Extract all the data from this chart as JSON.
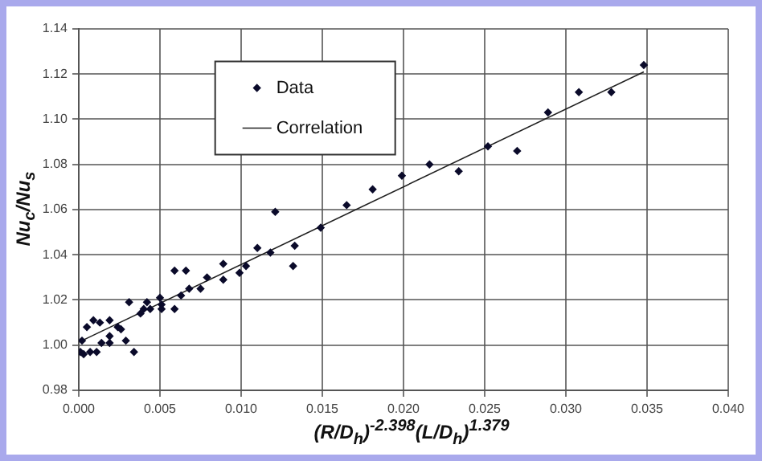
{
  "chart_data": {
    "type": "scatter",
    "xlabel": "(R/D$_{h}$)$^{-2.398}$(L/D$_{h}$)$^{1.379}$",
    "ylabel": "Nu$_{c}$/Nu$_{s}$",
    "xlim": [
      0,
      0.04
    ],
    "ylim": [
      0.98,
      1.14
    ],
    "xticks": [
      {
        "value": 0,
        "label": "0.000"
      },
      {
        "value": 0.005,
        "label": "0.005"
      },
      {
        "value": 0.01,
        "label": "0.010"
      },
      {
        "value": 0.015,
        "label": "0.015"
      },
      {
        "value": 0.02,
        "label": "0.020"
      },
      {
        "value": 0.025,
        "label": "0.025"
      },
      {
        "value": 0.03,
        "label": "0.030"
      },
      {
        "value": 0.035,
        "label": "0.035"
      },
      {
        "value": 0.04,
        "label": "0.040"
      }
    ],
    "yticks": [
      {
        "value": 0.98,
        "label": "0.98"
      },
      {
        "value": 1,
        "label": "1.00"
      },
      {
        "value": 1.02,
        "label": "1.02"
      },
      {
        "value": 1.04,
        "label": "1.04"
      },
      {
        "value": 1.06,
        "label": "1.06"
      },
      {
        "value": 1.08,
        "label": "1.08"
      },
      {
        "value": 1.1,
        "label": "1.10"
      },
      {
        "value": 1.12,
        "label": "1.12"
      },
      {
        "value": 1.14,
        "label": "1.14"
      }
    ],
    "grid": true,
    "legend": "top left",
    "series": [
      {
        "name": "Data",
        "type": "scatter",
        "marker": "diamond",
        "color": "#0a0a2a",
        "x": [
          0.0001,
          0.0002,
          0.0003,
          0.0005,
          0.0007,
          0.0009,
          0.0011,
          0.0013,
          0.0014,
          0.0019,
          0.0019,
          0.0019,
          0.0024,
          0.0026,
          0.0029,
          0.0031,
          0.0034,
          0.0038,
          0.004,
          0.0042,
          0.0044,
          0.005,
          0.0051,
          0.0051,
          0.0059,
          0.0059,
          0.0063,
          0.0066,
          0.0068,
          0.0075,
          0.0079,
          0.0089,
          0.0089,
          0.0099,
          0.0103,
          0.011,
          0.0118,
          0.0121,
          0.0132,
          0.0133,
          0.0149,
          0.0165,
          0.0181,
          0.0199,
          0.0216,
          0.0234,
          0.0252,
          0.027,
          0.0289,
          0.0308,
          0.0328,
          0.0348
        ],
        "values": [
          0.997,
          1.002,
          0.996,
          1.008,
          0.997,
          1.011,
          0.997,
          1.01,
          1.001,
          1.011,
          1.004,
          1.001,
          1.008,
          1.007,
          1.002,
          1.019,
          0.997,
          1.014,
          1.016,
          1.019,
          1.016,
          1.021,
          1.018,
          1.016,
          1.033,
          1.016,
          1.022,
          1.033,
          1.025,
          1.025,
          1.03,
          1.036,
          1.029,
          1.032,
          1.035,
          1.043,
          1.041,
          1.059,
          1.035,
          1.044,
          1.052,
          1.062,
          1.069,
          1.075,
          1.08,
          1.077,
          1.088,
          1.086,
          1.103,
          1.112,
          1.112,
          1.124
        ]
      },
      {
        "name": "Correlation",
        "type": "line",
        "marker": "none",
        "line_style": "solid",
        "color": "#202020",
        "x": [
          0.0002,
          0.0348
        ],
        "values": [
          1.002,
          1.121
        ]
      }
    ]
  }
}
